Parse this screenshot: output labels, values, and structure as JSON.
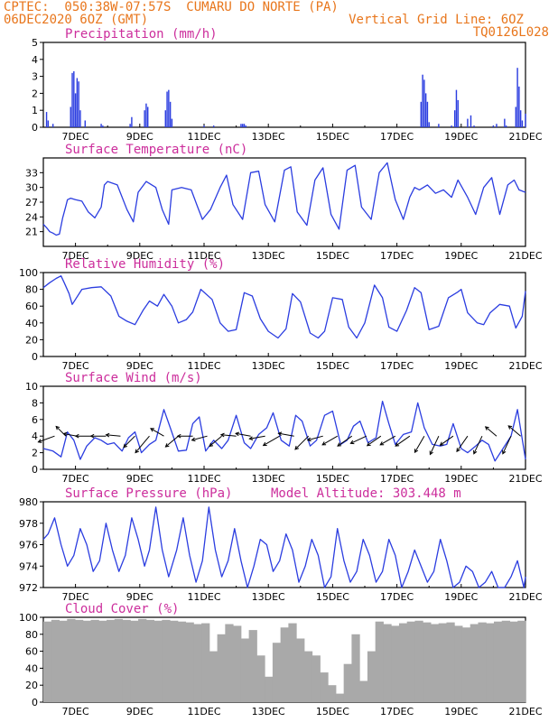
{
  "header": {
    "line1": "CPTEC:  050:38W-07:57S  CUMARU DO NORTE (PA)",
    "line2": "06DEC2020 6OZ (GMT)",
    "grid_note": "Vertical Grid Line: 6OZ",
    "code": "TQ0126L028"
  },
  "colors": {
    "header": "#e8761c",
    "title": "#cc2e9c",
    "line": "#2b3de0",
    "cloud": "#a9a9a9",
    "wind_arrow": "#000000"
  },
  "chart_data": [
    {
      "type": "bar",
      "title": "Precipitation (mm/h)",
      "x_ticks": [
        "7DEC",
        "9DEC",
        "11DEC",
        "13DEC",
        "15DEC",
        "17DEC",
        "19DEC",
        "21DEC"
      ],
      "ylim": [
        0,
        5
      ],
      "y_ticks": [
        "0",
        "1",
        "2",
        "3",
        "4",
        "5"
      ],
      "x": [
        6.1,
        6.15,
        6.3,
        6.85,
        6.9,
        6.95,
        7.0,
        7.05,
        7.1,
        7.15,
        7.3,
        7.8,
        7.85,
        8.7,
        8.75,
        9.15,
        9.2,
        9.25,
        9.8,
        9.85,
        9.9,
        9.95,
        10.0,
        11.0,
        11.3,
        12.15,
        12.2,
        12.25,
        12.3,
        17.75,
        17.8,
        17.85,
        17.9,
        17.95,
        18.0,
        18.3,
        18.7,
        18.8,
        18.85,
        18.9,
        19.2,
        19.3,
        19.4,
        20.0,
        20.1,
        20.35,
        20.4,
        20.7,
        20.75,
        20.8,
        20.85,
        20.9,
        21.0
      ],
      "values": [
        0.9,
        0.4,
        0.2,
        1.2,
        3.2,
        3.3,
        2.0,
        2.9,
        2.7,
        1.0,
        0.4,
        0.2,
        0.1,
        0.2,
        0.6,
        1.0,
        1.4,
        1.2,
        1.0,
        2.1,
        2.2,
        1.5,
        0.5,
        0.1,
        0.1,
        0.2,
        0.2,
        0.2,
        0.1,
        1.5,
        3.1,
        2.8,
        2.0,
        1.5,
        0.3,
        0.2,
        0.1,
        1.0,
        2.2,
        1.6,
        0.5,
        0.7,
        0.1,
        0.1,
        0.2,
        0.5,
        0.1,
        1.2,
        3.5,
        2.4,
        1.0,
        0.4,
        0.8
      ]
    },
    {
      "type": "line",
      "title": "Surface Temperature (nC)",
      "x_ticks": [
        "7DEC",
        "9DEC",
        "11DEC",
        "13DEC",
        "15DEC",
        "17DEC",
        "19DEC",
        "21DEC"
      ],
      "ylim": [
        18,
        36
      ],
      "y_ticks": [
        "21",
        "24",
        "27",
        "30",
        "33"
      ],
      "x": [
        6,
        6.1,
        6.2,
        6.3,
        6.4,
        6.5,
        6.6,
        6.7,
        6.75,
        6.85,
        7,
        7.2,
        7.4,
        7.6,
        7.8,
        7.9,
        8,
        8.3,
        8.6,
        8.8,
        8.95,
        9.2,
        9.5,
        9.7,
        9.9,
        10,
        10.3,
        10.6,
        10.8,
        10.95,
        11.2,
        11.5,
        11.7,
        11.9,
        12.2,
        12.45,
        12.7,
        12.9,
        13.2,
        13.5,
        13.7,
        13.9,
        14.2,
        14.45,
        14.7,
        14.95,
        15.2,
        15.45,
        15.7,
        15.9,
        16.2,
        16.45,
        16.7,
        16.95,
        17.2,
        17.4,
        17.55,
        17.7,
        17.95,
        18.2,
        18.45,
        18.7,
        18.9,
        19.2,
        19.45,
        19.7,
        19.95,
        20.2,
        20.45,
        20.65,
        20.8,
        21
      ],
      "values": [
        22.5,
        21.8,
        21,
        20.7,
        20.3,
        20.5,
        23.8,
        26.2,
        27.5,
        27.8,
        27.5,
        27.2,
        25,
        23.8,
        26,
        30.5,
        31.2,
        30.5,
        25.5,
        23,
        29,
        31.2,
        30,
        25.5,
        22.5,
        29.5,
        30,
        29.5,
        26,
        23.5,
        25.5,
        30,
        32.5,
        26.5,
        23.5,
        33,
        33.3,
        26.5,
        23,
        33.5,
        34.2,
        25,
        22.3,
        31.5,
        34,
        24.5,
        21.5,
        33.5,
        34.5,
        26,
        23.5,
        33,
        35,
        27.5,
        23.5,
        28,
        30,
        29.5,
        30.5,
        28.8,
        29.5,
        28,
        31.5,
        28,
        24.5,
        30,
        32,
        24.5,
        30.5,
        31.5,
        29.5,
        29
      ]
    },
    {
      "type": "line",
      "title": "Relative Humidity (%)",
      "x_ticks": [
        "7DEC",
        "9DEC",
        "11DEC",
        "13DEC",
        "15DEC",
        "17DEC",
        "19DEC",
        "21DEC"
      ],
      "ylim": [
        0,
        100
      ],
      "y_ticks": [
        "0",
        "20",
        "40",
        "60",
        "80",
        "100"
      ],
      "x": [
        6,
        6.2,
        6.4,
        6.55,
        6.65,
        6.8,
        6.9,
        7.2,
        7.5,
        7.8,
        8.1,
        8.35,
        8.6,
        8.85,
        9.1,
        9.3,
        9.55,
        9.75,
        10,
        10.2,
        10.45,
        10.65,
        10.9,
        11.25,
        11.5,
        11.75,
        12,
        12.25,
        12.5,
        12.75,
        13,
        13.3,
        13.55,
        13.75,
        14,
        14.3,
        14.55,
        14.75,
        15,
        15.3,
        15.5,
        15.75,
        16,
        16.3,
        16.55,
        16.75,
        17,
        17.3,
        17.55,
        17.75,
        18,
        18.3,
        18.6,
        18.9,
        19,
        19.2,
        19.5,
        19.7,
        19.9,
        20.2,
        20.5,
        20.7,
        20.9,
        21
      ],
      "values": [
        82,
        88,
        93,
        96,
        88,
        75,
        62,
        80,
        82,
        83,
        72,
        48,
        42,
        38,
        55,
        66,
        60,
        74,
        60,
        40,
        44,
        53,
        80,
        68,
        40,
        30,
        32,
        76,
        72,
        45,
        30,
        22,
        33,
        75,
        65,
        28,
        22,
        30,
        70,
        68,
        35,
        22,
        40,
        85,
        70,
        35,
        30,
        55,
        82,
        76,
        32,
        36,
        70,
        77,
        80,
        52,
        40,
        38,
        52,
        62,
        60,
        34,
        48,
        78
      ]
    },
    {
      "type": "line",
      "title": "Surface Wind (m/s)",
      "x_ticks": [
        "7DEC",
        "9DEC",
        "11DEC",
        "13DEC",
        "15DEC",
        "17DEC",
        "19DEC",
        "21DEC"
      ],
      "ylim": [
        0,
        10
      ],
      "y_ticks": [
        "0",
        "2",
        "4",
        "6",
        "8",
        "10"
      ],
      "x": [
        6,
        6.3,
        6.55,
        6.75,
        6.95,
        7.15,
        7.35,
        7.6,
        7.8,
        8,
        8.2,
        8.45,
        8.65,
        8.85,
        9.05,
        9.3,
        9.5,
        9.75,
        9.95,
        10.2,
        10.45,
        10.65,
        10.85,
        11.05,
        11.3,
        11.55,
        11.75,
        12,
        12.25,
        12.45,
        12.7,
        12.95,
        13.15,
        13.4,
        13.65,
        13.85,
        14.05,
        14.3,
        14.5,
        14.75,
        15,
        15.25,
        15.45,
        15.65,
        15.85,
        16.1,
        16.35,
        16.55,
        16.75,
        16.95,
        17.2,
        17.45,
        17.65,
        17.85,
        18.1,
        18.35,
        18.55,
        18.75,
        19,
        19.2,
        19.45,
        19.65,
        19.85,
        20.05,
        20.3,
        20.55,
        20.75,
        21
      ],
      "values": [
        2.5,
        2.2,
        1.5,
        4.5,
        3.5,
        1.2,
        2.8,
        3.8,
        3.5,
        3.0,
        3.2,
        2.2,
        3.8,
        4.5,
        2.0,
        3.0,
        3.5,
        7.2,
        5.0,
        2.2,
        2.3,
        5.5,
        6.3,
        2.2,
        3.5,
        2.5,
        3.5,
        6.5,
        3.2,
        2.5,
        4.2,
        5.0,
        6.8,
        3.5,
        2.8,
        6.5,
        5.8,
        2.8,
        3.5,
        6.5,
        7.0,
        3.0,
        3.5,
        5.2,
        5.8,
        3.2,
        3.8,
        8.2,
        5.5,
        3.0,
        4.2,
        4.5,
        8.0,
        5.0,
        3.0,
        2.8,
        3.0,
        5.5,
        2.5,
        2.0,
        2.8,
        3.5,
        3.0,
        1.0,
        2.5,
        4.0,
        7.2,
        1.2
      ]
    },
    {
      "type": "line",
      "title": "Surface Pressure (hPa)",
      "annotation": "Model Altitude: 303.448 m",
      "x_ticks": [
        "7DEC",
        "9DEC",
        "11DEC",
        "13DEC",
        "15DEC",
        "17DEC",
        "19DEC",
        "21DEC"
      ],
      "ylim": [
        972,
        980
      ],
      "y_ticks": [
        "972",
        "974",
        "976",
        "978",
        "980"
      ],
      "x": [
        6,
        6.15,
        6.35,
        6.55,
        6.75,
        6.95,
        7.15,
        7.35,
        7.55,
        7.75,
        7.95,
        8.15,
        8.35,
        8.55,
        8.75,
        8.95,
        9.15,
        9.3,
        9.5,
        9.7,
        9.9,
        10.15,
        10.35,
        10.55,
        10.75,
        10.95,
        11.15,
        11.35,
        11.55,
        11.75,
        11.95,
        12.15,
        12.35,
        12.55,
        12.75,
        12.95,
        13.15,
        13.35,
        13.55,
        13.75,
        13.95,
        14.15,
        14.35,
        14.55,
        14.75,
        14.95,
        15.15,
        15.35,
        15.55,
        15.75,
        15.95,
        16.15,
        16.35,
        16.55,
        16.75,
        16.95,
        17.15,
        17.35,
        17.55,
        17.75,
        17.95,
        18.15,
        18.35,
        18.55,
        18.75,
        18.95,
        19.15,
        19.35,
        19.55,
        19.75,
        19.95,
        20.15,
        20.35,
        20.55,
        20.75,
        20.95,
        21
      ],
      "values": [
        976.5,
        977,
        978.5,
        976,
        974,
        975,
        977.5,
        976,
        973.5,
        974.5,
        978,
        975.5,
        973.5,
        975,
        978.5,
        976.5,
        974,
        975.5,
        979.5,
        975.5,
        973,
        975.5,
        978.5,
        975,
        972.5,
        974.5,
        979.5,
        975.5,
        973,
        974.5,
        977.5,
        974.5,
        972,
        974,
        976.5,
        976,
        973.5,
        974.5,
        977,
        975.5,
        972.5,
        974,
        976.5,
        975,
        972,
        973,
        977.5,
        974.5,
        972.5,
        973.5,
        976.5,
        975,
        972.5,
        973.5,
        976.5,
        975,
        971.5,
        973.5,
        975.5,
        974,
        972.5,
        973.5,
        976.5,
        974.5,
        971.5,
        972.5,
        974,
        973.5,
        971.5,
        972.5,
        973.5,
        972,
        970.5,
        973,
        974.5,
        972,
        973
      ]
    },
    {
      "type": "bar",
      "title": "Cloud Cover (%)",
      "x_ticks": [
        "7DEC",
        "9DEC",
        "11DEC",
        "13DEC",
        "15DEC",
        "17DEC",
        "19DEC",
        "21DEC"
      ],
      "ylim": [
        0,
        100
      ],
      "y_ticks": [
        "0",
        "20",
        "40",
        "60",
        "80",
        "100"
      ],
      "x": [
        6.0,
        6.25,
        6.5,
        6.75,
        7.0,
        7.25,
        7.5,
        7.75,
        8.0,
        8.25,
        8.5,
        8.75,
        9.0,
        9.25,
        9.5,
        9.75,
        10.0,
        10.25,
        10.5,
        10.75,
        11.0,
        11.25,
        11.5,
        11.75,
        12.0,
        12.25,
        12.5,
        12.75,
        13.0,
        13.25,
        13.5,
        13.75,
        14.0,
        14.25,
        14.5,
        14.75,
        15.0,
        15.25,
        15.5,
        15.75,
        16.0,
        16.25,
        16.5,
        16.75,
        17.0,
        17.25,
        17.5,
        17.75,
        18.0,
        18.25,
        18.5,
        18.75,
        19.0,
        19.25,
        19.5,
        19.75,
        20.0,
        20.25,
        20.5,
        20.75,
        21.0
      ],
      "values": [
        95,
        97,
        96,
        98,
        97,
        96,
        97,
        96,
        97,
        98,
        97,
        96,
        98,
        97,
        96,
        97,
        96,
        95,
        94,
        92,
        93,
        60,
        80,
        92,
        90,
        75,
        85,
        55,
        30,
        70,
        88,
        93,
        75,
        60,
        55,
        35,
        20,
        10,
        45,
        80,
        25,
        60,
        95,
        92,
        90,
        93,
        95,
        96,
        94,
        92,
        93,
        94,
        90,
        88,
        92,
        94,
        93,
        95,
        96,
        95,
        96
      ]
    }
  ],
  "wind_barbs": {
    "x": [
      6.35,
      6.7,
      7.05,
      7.5,
      7.95,
      8.4,
      8.85,
      9.3,
      9.75,
      10.2,
      10.65,
      11.1,
      11.55,
      12.0,
      12.45,
      12.9,
      13.35,
      13.8,
      14.25,
      14.7,
      15.15,
      15.6,
      16.05,
      16.5,
      16.95,
      17.4,
      17.85,
      18.3,
      18.75,
      19.2,
      19.65,
      20.1,
      20.55,
      20.85
    ],
    "y": [
      4.0,
      4.0,
      4.0,
      4.0,
      4.0,
      4.0,
      4.0,
      4.0,
      4.0,
      4.0,
      4.0,
      4.0,
      4.0,
      4.0,
      4.0,
      4.0,
      4.0,
      4.0,
      4.0,
      4.0,
      4.0,
      4.0,
      4.0,
      4.0,
      4.0,
      4.0,
      4.0,
      4.0,
      4.0,
      4.0,
      4.0,
      4.0,
      4.0,
      4.0
    ],
    "dir_deg": [
      200,
      135,
      170,
      180,
      180,
      175,
      225,
      230,
      150,
      220,
      180,
      195,
      220,
      175,
      170,
      190,
      210,
      170,
      225,
      195,
      210,
      215,
      205,
      215,
      210,
      215,
      240,
      245,
      215,
      235,
      245,
      140,
      245,
      140
    ],
    "len_frac": [
      0.7,
      0.45,
      0.45,
      0.6,
      0.55,
      0.5,
      0.6,
      1.0,
      0.55,
      0.65,
      0.55,
      0.6,
      0.6,
      0.55,
      0.55,
      0.6,
      0.8,
      0.6,
      0.8,
      0.6,
      0.7,
      0.7,
      0.7,
      0.65,
      0.7,
      0.7,
      0.8,
      0.9,
      0.6,
      0.8,
      0.85,
      0.5,
      0.85,
      0.6
    ]
  }
}
